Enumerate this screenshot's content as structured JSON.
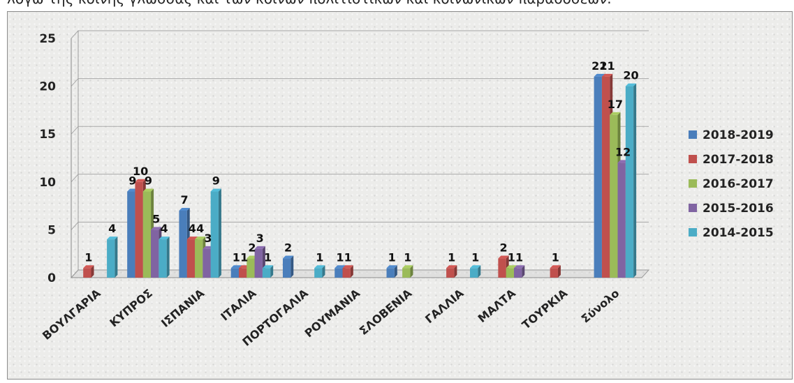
{
  "header": {
    "text": "λόγω της κοινής γλώσσας και των κοινών πολιτιστικών και κοινωνικών παραδόσεων."
  },
  "colors": {
    "2018-2019": "#4a7ebb",
    "2017-2018": "#c0504d",
    "2016-2017": "#9bbb59",
    "2015-2016": "#8064a2",
    "2014-2015": "#4bacc6"
  },
  "chart_data": {
    "type": "bar",
    "title": "",
    "xlabel": "",
    "ylabel": "",
    "ylim": [
      0,
      25
    ],
    "yticks": [
      0,
      5,
      10,
      15,
      20,
      25
    ],
    "grid": true,
    "legend_position": "right",
    "categories": [
      "ΒΟΥΛΓΑΡΙΑ",
      "ΚΥΠΡΟΣ",
      "ΙΣΠΑΝΙΑ",
      "ΙΤΑΛΙΑ",
      "ΠΟΡΤΟΓΑΛΙΑ",
      "ΡΟΥΜΑΝΙΑ",
      "ΣΛΟΒΕΝΙΑ",
      "ΓΑΛΛΙΑ",
      "ΜΑΛΤΑ",
      "ΤΟΥΡΚΙΑ",
      "Σύνολο"
    ],
    "series": [
      {
        "name": "2018-2019",
        "values": [
          0,
          9,
          7,
          1,
          2,
          1,
          1,
          0,
          0,
          0,
          21
        ]
      },
      {
        "name": "2017-2018",
        "values": [
          1,
          10,
          4,
          1,
          0,
          1,
          0,
          1,
          2,
          1,
          21
        ]
      },
      {
        "name": "2016-2017",
        "values": [
          0,
          9,
          4,
          2,
          0,
          0,
          1,
          0,
          1,
          0,
          17
        ]
      },
      {
        "name": "2015-2016",
        "values": [
          0,
          5,
          3,
          3,
          0,
          0,
          0,
          0,
          1,
          0,
          12
        ]
      },
      {
        "name": "2014-2015",
        "values": [
          4,
          4,
          9,
          1,
          1,
          0,
          0,
          1,
          0,
          0,
          20
        ]
      }
    ]
  }
}
